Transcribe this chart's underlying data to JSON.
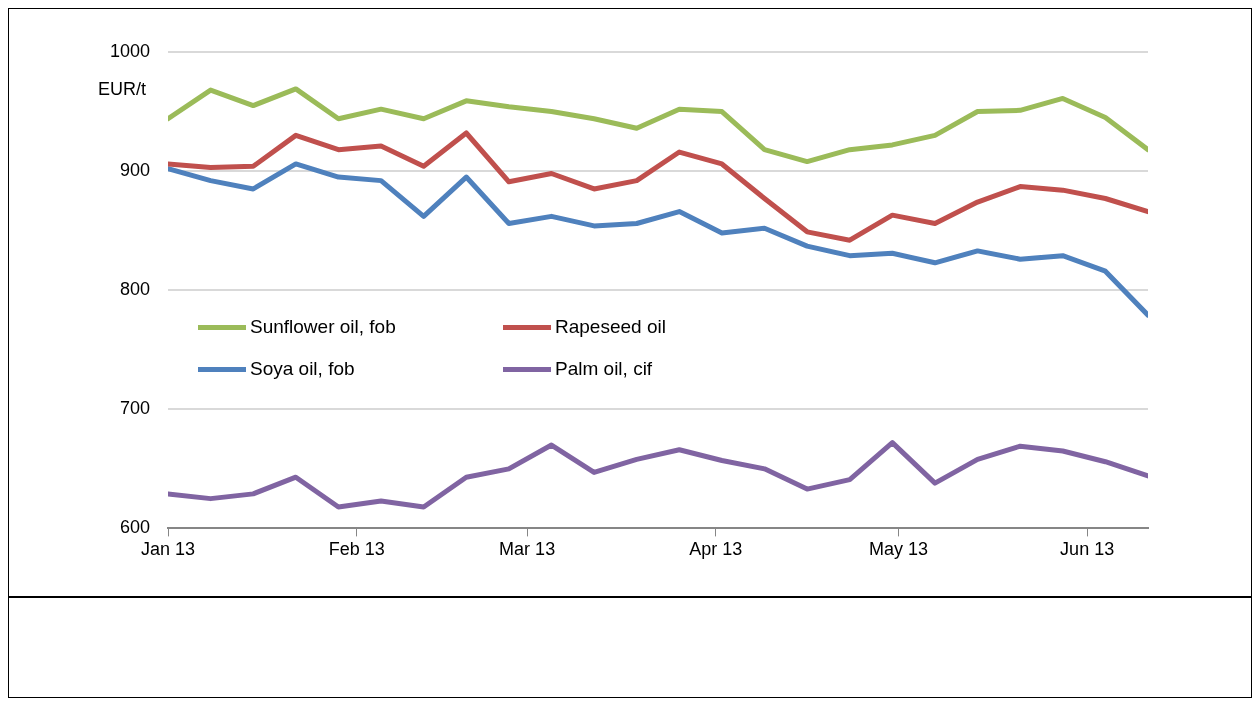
{
  "chart_data": {
    "type": "line",
    "ylabel": "EUR/t",
    "x": [
      "2013-01-01",
      "2013-01-08",
      "2013-01-15",
      "2013-01-22",
      "2013-01-29",
      "2013-02-05",
      "2013-02-12",
      "2013-02-19",
      "2013-02-26",
      "2013-03-05",
      "2013-03-12",
      "2013-03-19",
      "2013-03-26",
      "2013-04-02",
      "2013-04-09",
      "2013-04-16",
      "2013-04-23",
      "2013-04-30",
      "2013-05-07",
      "2013-05-14",
      "2013-05-21",
      "2013-05-28",
      "2013-06-04",
      "2013-06-11"
    ],
    "series": [
      {
        "name": "Sunflower oil, fob",
        "color": "#9bbb59",
        "values": [
          944,
          968,
          955,
          969,
          944,
          952,
          944,
          959,
          954,
          950,
          944,
          936,
          952,
          950,
          918,
          908,
          918,
          922,
          930,
          950,
          951,
          961,
          945,
          918
        ]
      },
      {
        "name": "Rapeseed oil",
        "color": "#c0504d",
        "values": [
          906,
          903,
          904,
          930,
          918,
          921,
          904,
          932,
          891,
          898,
          885,
          892,
          916,
          906,
          877,
          849,
          842,
          863,
          856,
          874,
          887,
          884,
          877,
          866
        ]
      },
      {
        "name": "Soya oil, fob",
        "color": "#4f81bd",
        "values": [
          902,
          892,
          885,
          906,
          895,
          892,
          862,
          895,
          856,
          862,
          854,
          856,
          866,
          848,
          852,
          837,
          829,
          831,
          823,
          833,
          826,
          829,
          816,
          779
        ]
      },
      {
        "name": "Palm oil, cif",
        "color": "#8064a2",
        "values": [
          629,
          625,
          629,
          643,
          618,
          623,
          618,
          643,
          650,
          670,
          647,
          658,
          666,
          657,
          650,
          633,
          641,
          672,
          638,
          658,
          669,
          665,
          656,
          644
        ]
      }
    ],
    "xlim": [
      "2013-01-01",
      "2013-06-11"
    ],
    "xticks": [
      {
        "value": "2013-01-01",
        "label": "Jan 13"
      },
      {
        "value": "2013-02-01",
        "label": "Feb 13"
      },
      {
        "value": "2013-03-01",
        "label": "Mar 13"
      },
      {
        "value": "2013-04-01",
        "label": "Apr 13"
      },
      {
        "value": "2013-05-01",
        "label": "May 13"
      },
      {
        "value": "2013-06-01",
        "label": "Jun 13"
      }
    ],
    "ylim": [
      600,
      1000
    ],
    "yticks": [
      600,
      700,
      800,
      900,
      1000
    ],
    "grid": "y",
    "legend": "left",
    "marker": "none",
    "line_style": "solid"
  }
}
